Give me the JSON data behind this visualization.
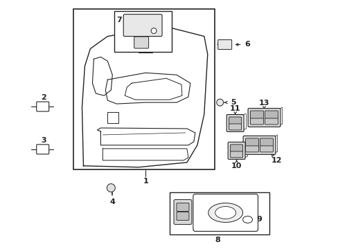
{
  "background_color": "#ffffff",
  "line_color": "#222222",
  "fig_width": 4.89,
  "fig_height": 3.6,
  "dpi": 100
}
